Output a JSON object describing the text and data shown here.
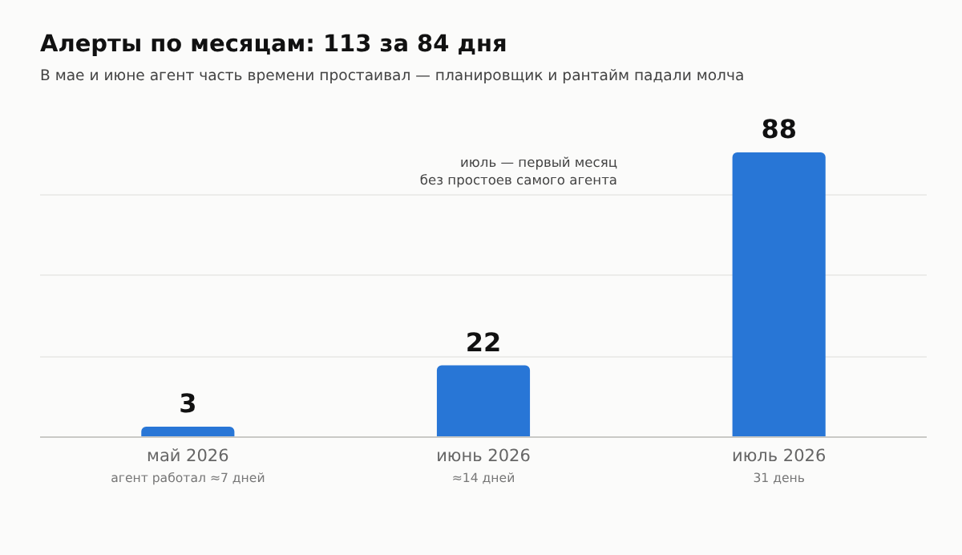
{
  "chart_data": {
    "type": "bar",
    "title": "Алерты по месяцам: 113 за 84 дня",
    "subtitle": "В мае и июне агент часть времени простаивал — планировщик и рантайм падали молча",
    "categories": [
      "май 2026\nагент работал ≈7 дней",
      "июнь 2026\n≈14 дней",
      "июль 2026\n31 день"
    ],
    "values": [
      3,
      22,
      88
    ],
    "color": "#2876d6",
    "data_labels": true,
    "yticks": [
      {
        "value": 0,
        "label": null
      },
      {
        "value": 25,
        "label": null
      },
      {
        "value": 50,
        "label": null
      },
      {
        "value": 75,
        "label": null
      }
    ],
    "grid": "y",
    "tick_labels": "x",
    "legend": false,
    "annotations": [
      "июль — первый месяц\nбез простоев самого агента"
    ]
  }
}
